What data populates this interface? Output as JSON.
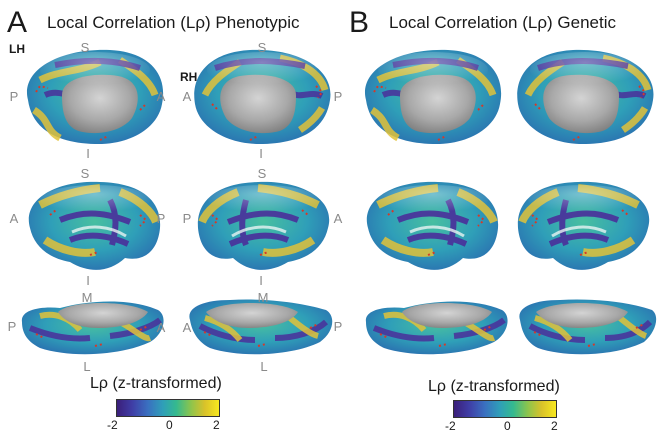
{
  "panel_a": {
    "letter": "A",
    "title": "Local Correlation (Lρ) Phenotypic",
    "lh_label": "LH",
    "rh_label": "RH"
  },
  "panel_b": {
    "letter": "B",
    "title": "Local Correlation (Lρ) Genetic"
  },
  "orientation": {
    "s": "S",
    "i": "I",
    "a": "A",
    "p": "P",
    "m": "M",
    "l": "L"
  },
  "colorbar": {
    "title": "Lρ (z-transformed)",
    "min": "-2",
    "mid": "0",
    "max": "2",
    "colors": [
      "#3b1f7a",
      "#3f3ea6",
      "#3a6fc0",
      "#2f9fb8",
      "#34b98f",
      "#8ac44e",
      "#d9c22a",
      "#f7e81f"
    ]
  },
  "colors": {
    "medial_wall": "#9a9a9a",
    "surface_base": "#2fa3b5",
    "dots": "#d43a2a"
  }
}
